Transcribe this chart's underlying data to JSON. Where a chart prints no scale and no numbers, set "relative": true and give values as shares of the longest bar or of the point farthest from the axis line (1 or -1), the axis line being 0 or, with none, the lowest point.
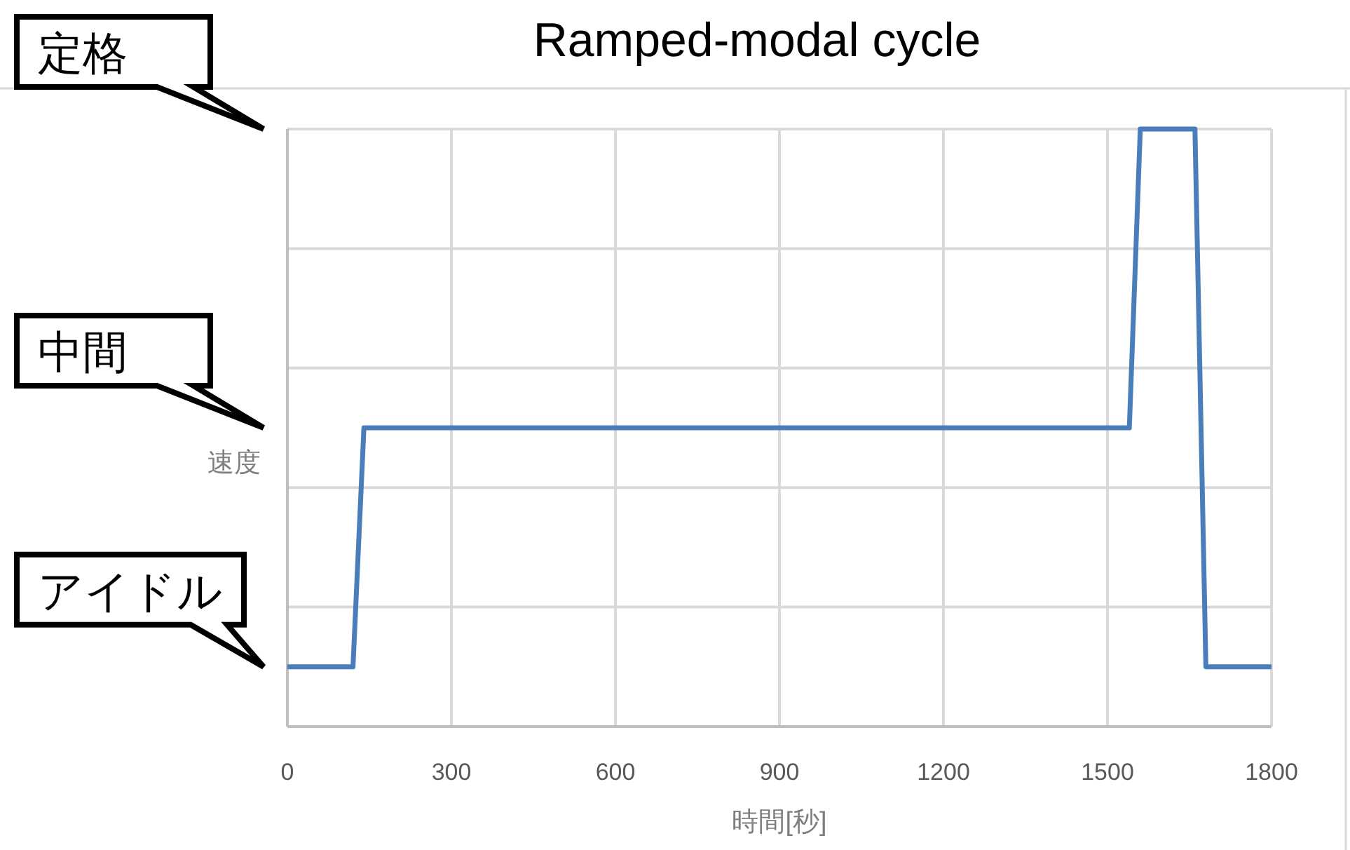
{
  "chart_data": {
    "type": "line",
    "title": "Ramped-modal cycle",
    "xlabel": "時間[秒]",
    "ylabel": "速度",
    "relative": true,
    "x": [
      0,
      120,
      140,
      1540,
      1560,
      1660,
      1680,
      1800
    ],
    "series": [
      {
        "color": "#4a7ebb",
        "values": [
          0.1,
          0.1,
          0.5,
          0.5,
          1,
          1,
          0.1,
          0.1
        ]
      }
    ],
    "xlim": [
      0,
      1800
    ],
    "xticks": [
      0,
      300,
      600,
      900,
      1200,
      1500,
      1800
    ],
    "grid": true,
    "marker": "none",
    "line_style": "solid",
    "annotations": [
      "定格",
      "中間",
      "アイドル"
    ]
  }
}
